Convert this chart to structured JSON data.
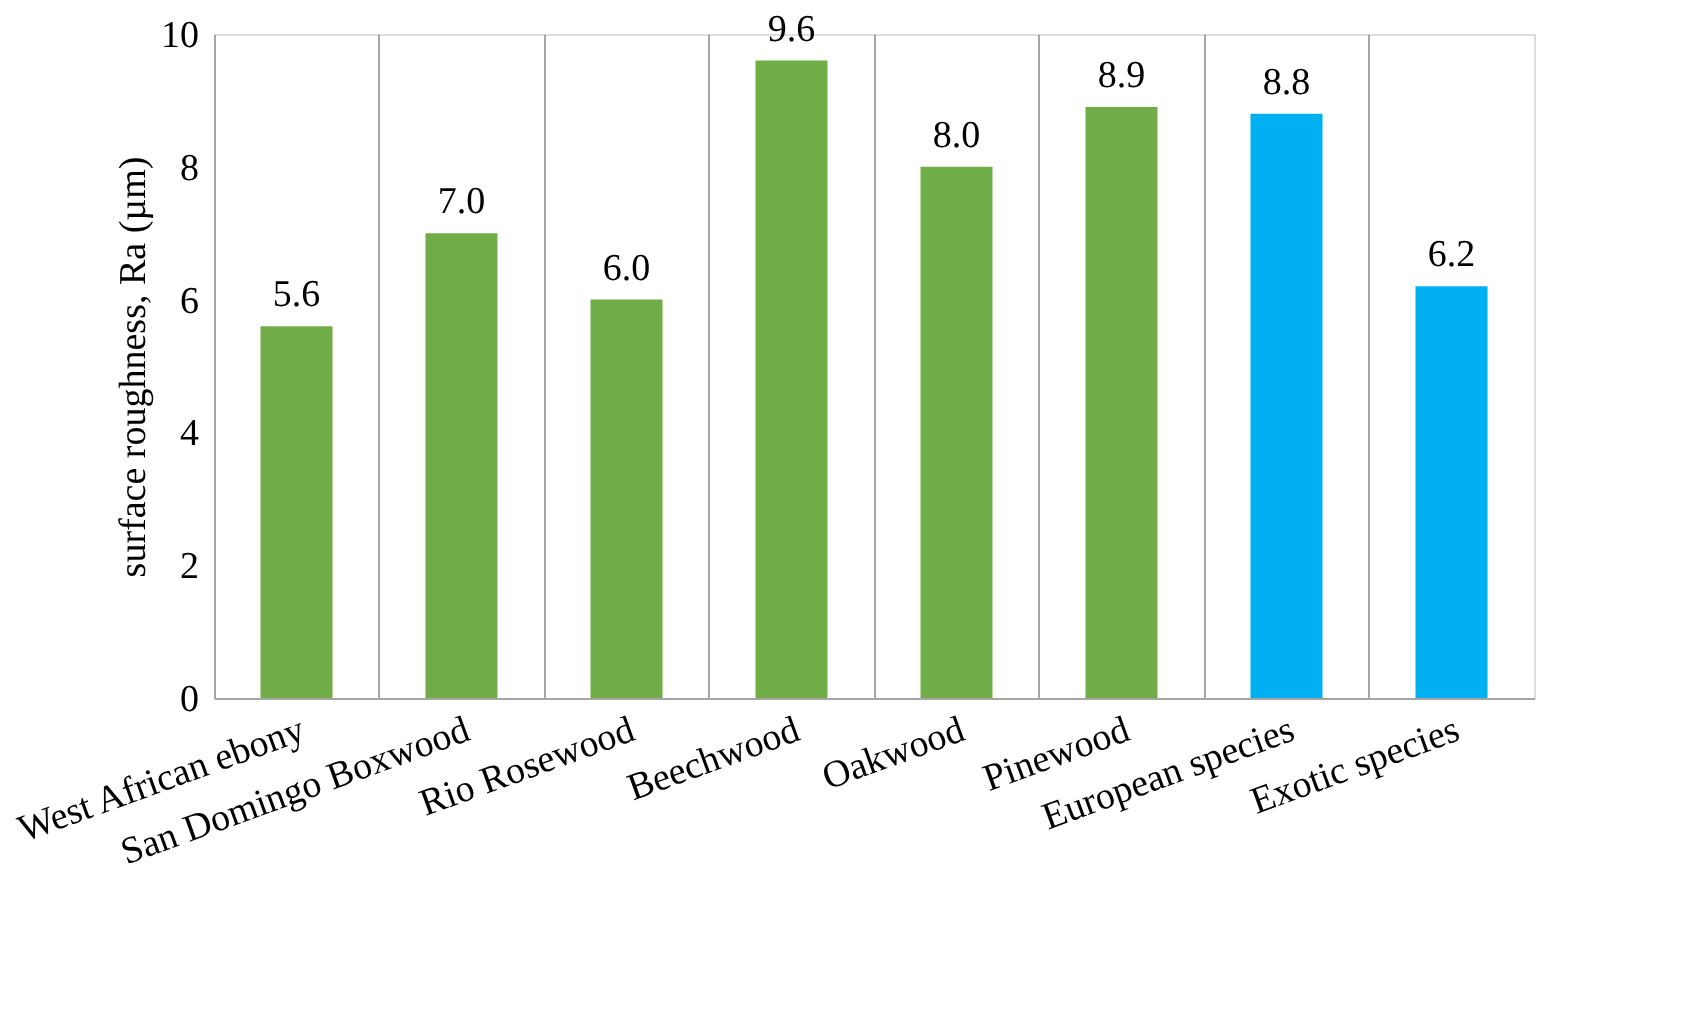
{
  "chart_data": {
    "type": "bar",
    "ylabel": "surface roughness, Ra (µm)",
    "categories": [
      "West African ebony",
      "San Domingo Boxwood",
      "Rio Rosewood",
      "Beechwood",
      "Oakwood",
      "Pinewood",
      "European species",
      "Exotic species"
    ],
    "values": [
      5.6,
      7.0,
      6.0,
      9.6,
      8.0,
      8.9,
      8.8,
      6.2
    ],
    "colors": [
      "#70ad47",
      "#70ad47",
      "#70ad47",
      "#70ad47",
      "#70ad47",
      "#70ad47",
      "#00b0f0",
      "#00b0f0"
    ],
    "value_labels": [
      "5.6",
      "7.0",
      "6.0",
      "9.6",
      "8.0",
      "8.9",
      "8.8",
      "6.2"
    ],
    "ylim": [
      0,
      10
    ],
    "yticks": [
      0,
      2,
      4,
      6,
      8,
      10
    ],
    "grid": "x"
  }
}
